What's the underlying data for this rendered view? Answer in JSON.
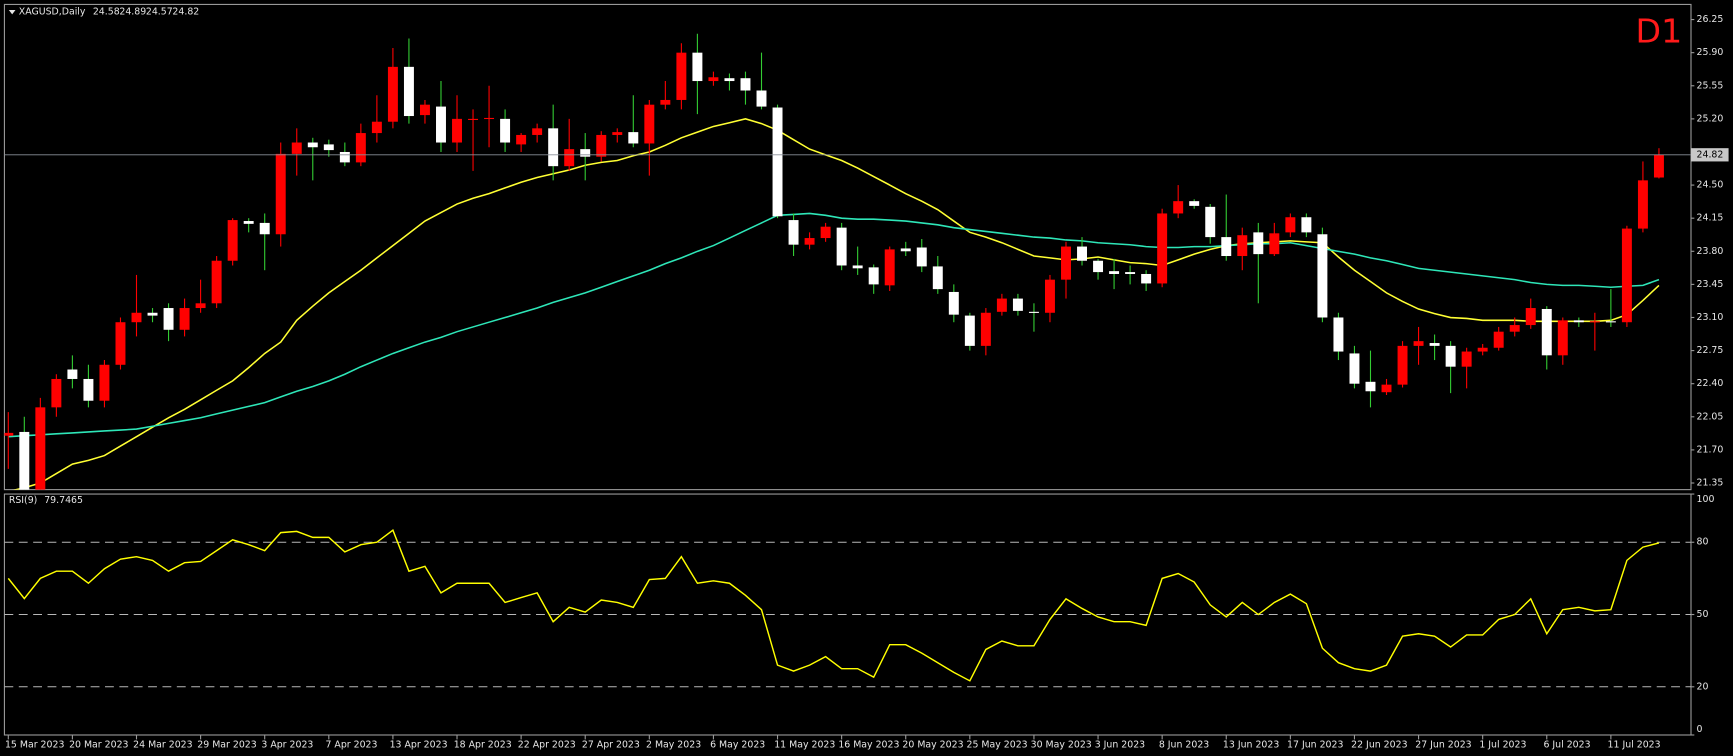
{
  "chart_data": [
    {
      "type": "candlestick",
      "title": "XAGUSD,Daily",
      "timeframe": "D1",
      "categories": [
        "15 Mar 2023",
        null,
        null,
        null,
        "20 Mar 2023",
        null,
        null,
        null,
        "24 Mar 2023",
        null,
        null,
        null,
        "29 Mar 2023",
        null,
        null,
        null,
        "3 Apr 2023",
        null,
        null,
        null,
        "7 Apr 2023",
        null,
        null,
        null,
        "13 Apr 2023",
        null,
        null,
        null,
        "18 Apr 2023",
        null,
        null,
        null,
        "22 Apr 2023",
        null,
        null,
        null,
        "27 Apr 2023",
        null,
        null,
        null,
        "2 May 2023",
        null,
        null,
        null,
        "6 May 2023",
        null,
        null,
        null,
        "11 May 2023",
        null,
        null,
        null,
        "16 May 2023",
        null,
        null,
        null,
        "20 May 2023",
        null,
        null,
        null,
        "25 May 2023",
        null,
        null,
        null,
        "30 May 2023",
        null,
        null,
        null,
        "3 Jun 2023",
        null,
        null,
        null,
        "8 Jun 2023",
        null,
        null,
        null,
        "13 Jun 2023",
        null,
        null,
        null,
        "17 Jun 2023",
        null,
        null,
        null,
        "22 Jun 2023",
        null,
        null,
        null,
        "27 Jun 2023",
        null,
        null,
        null,
        "1 Jul 2023",
        null,
        null,
        null,
        "6 Jul 2023",
        null,
        null,
        null,
        "11 Jul 2023",
        null,
        null,
        null
      ],
      "open": [
        21.85,
        21.89,
        21.2,
        22.15,
        22.55,
        22.45,
        22.22,
        22.6,
        23.05,
        23.15,
        23.2,
        22.97,
        23.2,
        23.25,
        23.7,
        24.12,
        24.1,
        23.98,
        24.83,
        24.95,
        24.93,
        24.85,
        24.74,
        25.05,
        25.17,
        25.75,
        25.24,
        25.33,
        24.95,
        25.2,
        25.2,
        25.2,
        24.93,
        25.03,
        25.1,
        24.7,
        24.88,
        24.8,
        25.03,
        25.06,
        24.94,
        25.35,
        25.4,
        25.9,
        25.6,
        25.63,
        25.63,
        25.5,
        25.32,
        24.13,
        23.87,
        23.94,
        24.05,
        23.65,
        23.63,
        23.44,
        23.83,
        23.84,
        23.64,
        23.37,
        23.12,
        22.8,
        23.16,
        23.3,
        23.16,
        23.15,
        23.5,
        23.85,
        23.7,
        23.59,
        23.58,
        23.56,
        23.46,
        24.2,
        24.33,
        24.27,
        23.95,
        23.75,
        24.0,
        23.77,
        24.0,
        24.16,
        23.98,
        23.1,
        22.72,
        22.42,
        22.31,
        22.39,
        22.8,
        22.83,
        22.8,
        22.58,
        22.74,
        22.78,
        22.95,
        23.02,
        23.19,
        22.7,
        23.07,
        23.05,
        23.06,
        23.05,
        24.04,
        24.58
      ],
      "high": [
        22.1,
        22.05,
        22.25,
        22.5,
        22.7,
        22.6,
        22.65,
        23.1,
        23.55,
        23.2,
        23.25,
        23.3,
        23.5,
        23.75,
        24.15,
        24.15,
        24.2,
        24.95,
        25.1,
        25.0,
        24.98,
        24.95,
        25.15,
        25.45,
        25.95,
        26.05,
        25.4,
        25.6,
        25.45,
        25.3,
        25.55,
        25.3,
        25.05,
        25.15,
        25.35,
        25.2,
        25.05,
        25.07,
        25.1,
        25.45,
        25.4,
        25.6,
        26.0,
        26.1,
        25.7,
        25.68,
        25.7,
        25.9,
        25.35,
        24.2,
        24.0,
        24.1,
        24.1,
        23.85,
        23.66,
        23.85,
        23.9,
        23.93,
        23.75,
        23.45,
        23.15,
        23.2,
        23.35,
        23.35,
        23.25,
        23.55,
        23.9,
        23.95,
        23.72,
        23.72,
        23.65,
        23.6,
        24.25,
        24.5,
        24.35,
        24.3,
        24.4,
        24.05,
        24.1,
        24.1,
        24.2,
        24.2,
        24.05,
        23.15,
        22.8,
        22.75,
        22.45,
        22.85,
        23.0,
        22.92,
        22.85,
        22.78,
        22.82,
        23.0,
        23.1,
        23.3,
        23.22,
        23.1,
        23.1,
        23.15,
        23.4,
        24.07,
        24.75,
        24.89
      ],
      "low": [
        21.5,
        21.15,
        21.15,
        22.05,
        22.35,
        22.15,
        22.15,
        22.55,
        22.9,
        23.05,
        22.85,
        22.9,
        23.15,
        23.2,
        23.65,
        24.0,
        23.6,
        23.85,
        24.6,
        24.55,
        24.8,
        24.7,
        24.7,
        24.95,
        25.1,
        25.15,
        25.15,
        24.85,
        24.85,
        24.65,
        24.9,
        24.85,
        24.85,
        24.95,
        24.55,
        24.65,
        24.55,
        24.75,
        24.95,
        24.9,
        24.6,
        25.3,
        25.3,
        25.25,
        25.55,
        25.5,
        25.35,
        25.3,
        24.15,
        23.75,
        23.82,
        23.9,
        23.6,
        23.55,
        23.35,
        23.38,
        23.75,
        23.58,
        23.35,
        23.05,
        22.75,
        22.7,
        23.12,
        23.12,
        22.95,
        23.05,
        23.3,
        23.65,
        23.5,
        23.4,
        23.45,
        23.38,
        23.42,
        24.15,
        24.25,
        23.88,
        23.7,
        23.6,
        23.25,
        23.75,
        23.95,
        23.95,
        23.05,
        22.65,
        22.35,
        22.15,
        22.28,
        22.36,
        22.6,
        22.65,
        22.3,
        22.35,
        22.7,
        22.75,
        22.9,
        22.98,
        22.55,
        22.6,
        23.0,
        22.75,
        23.0,
        23.0,
        24.0,
        24.57
      ],
      "close": [
        21.88,
        21.2,
        22.15,
        22.45,
        22.45,
        22.22,
        22.6,
        23.05,
        23.15,
        23.12,
        22.97,
        23.2,
        23.25,
        23.7,
        24.13,
        24.09,
        23.98,
        24.83,
        24.95,
        24.9,
        24.87,
        24.74,
        25.05,
        25.17,
        25.75,
        25.23,
        25.35,
        24.95,
        25.2,
        25.2,
        25.21,
        24.95,
        25.03,
        25.1,
        24.7,
        24.88,
        24.8,
        25.03,
        25.06,
        24.94,
        25.35,
        25.4,
        25.9,
        25.6,
        25.64,
        25.6,
        25.5,
        25.33,
        24.17,
        23.87,
        23.94,
        24.06,
        23.65,
        23.62,
        23.45,
        23.82,
        23.8,
        23.64,
        23.4,
        23.13,
        22.8,
        23.15,
        23.3,
        23.17,
        23.15,
        23.5,
        23.85,
        23.7,
        23.58,
        23.56,
        23.56,
        23.46,
        24.2,
        24.33,
        24.28,
        23.95,
        23.75,
        23.97,
        23.77,
        23.99,
        24.16,
        24.0,
        23.1,
        22.74,
        22.4,
        22.32,
        22.39,
        22.8,
        22.85,
        22.8,
        22.58,
        22.74,
        22.78,
        22.95,
        23.02,
        23.2,
        22.7,
        23.07,
        23.05,
        23.06,
        23.05,
        24.04,
        24.55,
        24.82
      ],
      "up_color": "#ff0000",
      "down_color": "#ffffff",
      "down_wick_color": "#33cc33",
      "overlays": [
        {
          "color": "#ffff33",
          "values": [
            21.26,
            21.3,
            21.35,
            21.45,
            21.55,
            21.59,
            21.64,
            21.74,
            21.84,
            21.94,
            22.04,
            22.13,
            22.23,
            22.33,
            22.43,
            22.57,
            22.72,
            22.84,
            23.07,
            23.22,
            23.36,
            23.48,
            23.6,
            23.73,
            23.86,
            23.99,
            24.12,
            24.21,
            24.3,
            24.36,
            24.41,
            24.47,
            24.53,
            24.58,
            24.62,
            24.66,
            24.71,
            24.74,
            24.76,
            24.81,
            24.85,
            24.92,
            25.0,
            25.06,
            25.12,
            25.16,
            25.2,
            25.15,
            25.08,
            24.98,
            24.88,
            24.82,
            24.76,
            24.68,
            24.59,
            24.5,
            24.41,
            24.33,
            24.24,
            24.12,
            24.0,
            23.95,
            23.89,
            23.82,
            23.75,
            23.73,
            23.71,
            23.72,
            23.74,
            23.71,
            23.68,
            23.67,
            23.65,
            23.71,
            23.77,
            23.82,
            23.86,
            23.88,
            23.89,
            23.9,
            23.91,
            23.9,
            23.89,
            23.74,
            23.6,
            23.48,
            23.36,
            23.27,
            23.19,
            23.14,
            23.1,
            23.09,
            23.07,
            23.07,
            23.07,
            23.06,
            23.06,
            23.06,
            23.06,
            23.06,
            23.07,
            23.13,
            23.28,
            23.44
          ]
        },
        {
          "color": "#2ee6b8",
          "values": [
            21.84,
            21.85,
            21.86,
            21.87,
            21.88,
            21.89,
            21.9,
            21.91,
            21.92,
            21.95,
            21.98,
            22.01,
            22.04,
            22.08,
            22.12,
            22.16,
            22.2,
            22.26,
            22.32,
            22.37,
            22.43,
            22.5,
            22.58,
            22.65,
            22.72,
            22.78,
            22.84,
            22.89,
            22.95,
            23.0,
            23.05,
            23.1,
            23.15,
            23.2,
            23.26,
            23.31,
            23.36,
            23.42,
            23.48,
            23.54,
            23.6,
            23.67,
            23.73,
            23.8,
            23.86,
            23.94,
            24.02,
            24.1,
            24.18,
            24.19,
            24.2,
            24.18,
            24.15,
            24.14,
            24.14,
            24.13,
            24.12,
            24.1,
            24.08,
            24.05,
            24.03,
            24.01,
            23.99,
            23.97,
            23.95,
            23.94,
            23.92,
            23.91,
            23.89,
            23.88,
            23.87,
            23.85,
            23.84,
            23.84,
            23.85,
            23.85,
            23.86,
            23.87,
            23.88,
            23.88,
            23.89,
            23.86,
            23.83,
            23.8,
            23.77,
            23.73,
            23.7,
            23.66,
            23.62,
            23.6,
            23.58,
            23.56,
            23.54,
            23.52,
            23.5,
            23.47,
            23.45,
            23.44,
            23.44,
            23.43,
            23.42,
            23.43,
            23.44,
            23.5
          ]
        }
      ],
      "ylim": [
        21.28,
        26.41
      ],
      "yticks": [
        26.25,
        {
          "value": 25.9,
          "label": "25.90"
        },
        25.55,
        {
          "value": 25.2,
          "label": "25.20"
        },
        {
          "value": 24.5,
          "label": "24.50"
        },
        24.15,
        {
          "value": 23.8,
          "label": "23.80"
        },
        23.45,
        {
          "value": 23.1,
          "label": "23.10"
        },
        22.75,
        {
          "value": 22.4,
          "label": "22.40"
        },
        22.05,
        {
          "value": 21.7,
          "label": "21.70"
        },
        21.35
      ]
    },
    {
      "type": "line",
      "title": "RSI(9)",
      "color": "#ffff00",
      "values": [
        65,
        56.6,
        65,
        68,
        68,
        63,
        69,
        73,
        74,
        72.5,
        68,
        71.5,
        72,
        76.5,
        81,
        79,
        76.5,
        84,
        84.5,
        82,
        82,
        76,
        79,
        80,
        85,
        68,
        70,
        59,
        63,
        63,
        63,
        55,
        57,
        59,
        47,
        53,
        51,
        56,
        55,
        53,
        64.5,
        65,
        74,
        63,
        64,
        63,
        58,
        52,
        29,
        26.5,
        29,
        32.5,
        27.5,
        27.5,
        24,
        37.5,
        37.5,
        34,
        30,
        26,
        22.5,
        35.5,
        39,
        37,
        37,
        48,
        56.5,
        52.5,
        49,
        47,
        47,
        45.5,
        65,
        67,
        63.5,
        54,
        49,
        55,
        50,
        55,
        58.5,
        54.5,
        36,
        30,
        27.5,
        26.5,
        29,
        41,
        42,
        41,
        36.5,
        41.5,
        41.5,
        48,
        50,
        56.5,
        42,
        52,
        53,
        51.5,
        52,
        72.5,
        78,
        79.7465
      ],
      "ylim": [
        0,
        100
      ],
      "yticks": [
        100,
        80,
        50,
        20,
        0
      ],
      "levels": [
        20,
        50,
        80
      ]
    }
  ]
}
